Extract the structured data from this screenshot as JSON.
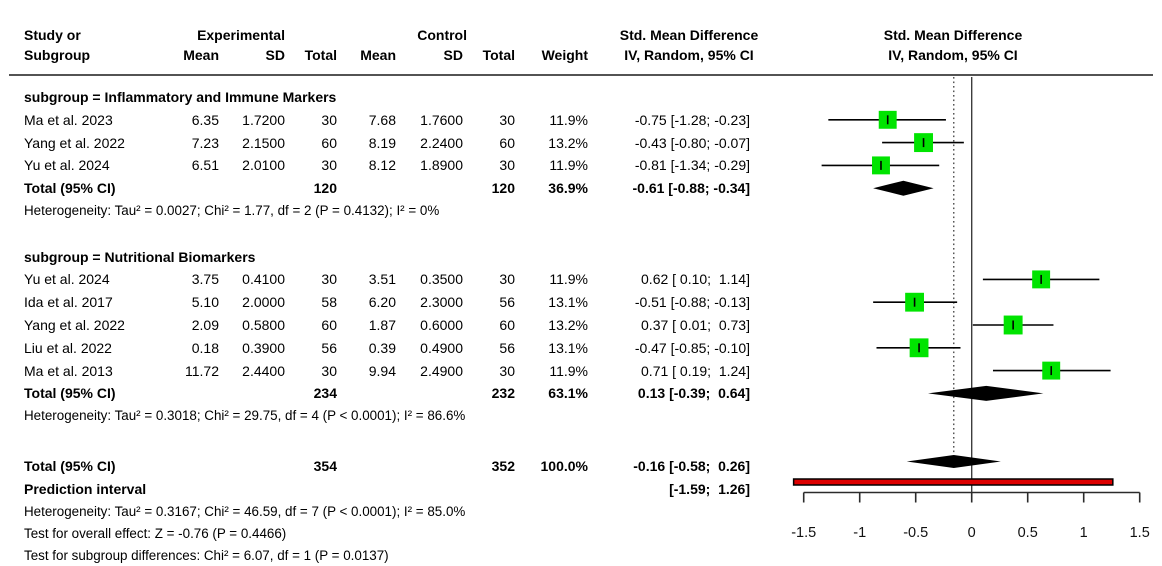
{
  "header": {
    "study_line1": "Study or",
    "study_line2": "Subgroup",
    "exp_group": "Experimental",
    "ctrl_group": "Control",
    "exp_mean": "Mean",
    "exp_sd": "SD",
    "exp_total": "Total",
    "ctrl_mean": "Mean",
    "ctrl_sd": "SD",
    "ctrl_total": "Total",
    "weight": "Weight",
    "smd_left_line1": "Std. Mean Difference",
    "smd_left_line2": "IV, Random, 95% CI",
    "smd_right_line1": "Std. Mean Difference",
    "smd_right_line2": "IV, Random, 95% CI"
  },
  "chart_data": {
    "type": "forest",
    "effect_measure": "Std. Mean Difference",
    "model": "IV, Random, 95% CI",
    "marker_color": "#00e400",
    "diamond_color": "#000000",
    "prediction_bar_color": "#dd0000",
    "x_axis": {
      "range": [
        -1.5,
        1.5
      ],
      "ticks": [
        -1.5,
        -1,
        -0.5,
        0,
        0.5,
        1,
        1.5
      ],
      "tick_labels": [
        "-1.5",
        "-1",
        "-0.5",
        "0",
        "0.5",
        "1",
        "1.5"
      ],
      "zero_line": 0,
      "overall_effect_line": -0.16
    },
    "subgroups": [
      {
        "label": "subgroup = Inflammatory and Immune Markers",
        "studies": [
          {
            "name": "Ma et al. 2023",
            "exp_mean": "6.35",
            "exp_sd": "1.7200",
            "exp_total": "30",
            "ctrl_mean": "7.68",
            "ctrl_sd": "1.7600",
            "ctrl_total": "30",
            "weight": "11.9%",
            "weight_val": 11.9,
            "ci_text": "-0.75 [-1.28; -0.23]",
            "est": -0.75,
            "lo": -1.28,
            "hi": -0.23
          },
          {
            "name": "Yang et al. 2022",
            "exp_mean": "7.23",
            "exp_sd": "2.1500",
            "exp_total": "60",
            "ctrl_mean": "8.19",
            "ctrl_sd": "2.2400",
            "ctrl_total": "60",
            "weight": "13.2%",
            "weight_val": 13.2,
            "ci_text": "-0.43 [-0.80; -0.07]",
            "est": -0.43,
            "lo": -0.8,
            "hi": -0.07
          },
          {
            "name": "Yu et al. 2024",
            "exp_mean": "6.51",
            "exp_sd": "2.0100",
            "exp_total": "30",
            "ctrl_mean": "8.12",
            "ctrl_sd": "1.8900",
            "ctrl_total": "30",
            "weight": "11.9%",
            "weight_val": 11.9,
            "ci_text": "-0.81 [-1.34; -0.29]",
            "est": -0.81,
            "lo": -1.34,
            "hi": -0.29
          }
        ],
        "total": {
          "label": "Total (95% CI)",
          "exp_total": "120",
          "ctrl_total": "120",
          "weight": "36.9%",
          "ci_text": "-0.61 [-0.88; -0.34]",
          "est": -0.61,
          "lo": -0.88,
          "hi": -0.34
        },
        "heterogeneity": "Heterogeneity: Tau² = 0.0027; Chi² = 1.77, df = 2 (P = 0.4132); I² = 0%"
      },
      {
        "label": "subgroup = Nutritional Biomarkers",
        "studies": [
          {
            "name": "Yu et al. 2024",
            "exp_mean": "3.75",
            "exp_sd": "0.4100",
            "exp_total": "30",
            "ctrl_mean": "3.51",
            "ctrl_sd": "0.3500",
            "ctrl_total": "30",
            "weight": "11.9%",
            "weight_val": 11.9,
            "ci_text": " 0.62 [ 0.10;  1.14]",
            "est": 0.62,
            "lo": 0.1,
            "hi": 1.14
          },
          {
            "name": "Ida et al. 2017",
            "exp_mean": "5.10",
            "exp_sd": "2.0000",
            "exp_total": "58",
            "ctrl_mean": "6.20",
            "ctrl_sd": "2.3000",
            "ctrl_total": "56",
            "weight": "13.1%",
            "weight_val": 13.1,
            "ci_text": "-0.51 [-0.88; -0.13]",
            "est": -0.51,
            "lo": -0.88,
            "hi": -0.13
          },
          {
            "name": "Yang et al. 2022",
            "exp_mean": "2.09",
            "exp_sd": "0.5800",
            "exp_total": "60",
            "ctrl_mean": "1.87",
            "exp_sd2": "",
            "ctrl_sd": "0.6000",
            "ctrl_total": "60",
            "weight": "13.2%",
            "weight_val": 13.2,
            "ci_text": " 0.37 [ 0.01;  0.73]",
            "est": 0.37,
            "lo": 0.01,
            "hi": 0.73
          },
          {
            "name": "Liu et al. 2022",
            "exp_mean": "0.18",
            "exp_sd": "0.3900",
            "exp_total": "56",
            "ctrl_mean": "0.39",
            "ctrl_sd": "0.4900",
            "ctrl_total": "56",
            "weight": "13.1%",
            "weight_val": 13.1,
            "ci_text": "-0.47 [-0.85; -0.10]",
            "est": -0.47,
            "lo": -0.85,
            "hi": -0.1
          },
          {
            "name": "Ma et al. 2013",
            "exp_mean": "11.72",
            "exp_sd": "2.4400",
            "exp_total": "30",
            "ctrl_mean": "9.94",
            "ctrl_sd": "2.4900",
            "ctrl_total": "30",
            "weight": "11.9%",
            "weight_val": 11.9,
            "ci_text": " 0.71 [ 0.19;  1.24]",
            "est": 0.71,
            "lo": 0.19,
            "hi": 1.24
          }
        ],
        "total": {
          "label": "Total (95% CI)",
          "exp_total": "234",
          "ctrl_total": "232",
          "weight": "63.1%",
          "ci_text": " 0.13 [-0.39;  0.64]",
          "est": 0.13,
          "lo": -0.39,
          "hi": 0.64
        },
        "heterogeneity": "Heterogeneity: Tau² = 0.3018; Chi² = 29.75, df = 4 (P < 0.0001); I² = 86.6%"
      }
    ],
    "overall": {
      "label": "Total (95% CI)",
      "exp_total": "354",
      "ctrl_total": "352",
      "weight": "100.0%",
      "ci_text": "-0.16 [-0.58;  0.26]",
      "est": -0.16,
      "lo": -0.58,
      "hi": 0.26
    },
    "prediction": {
      "label": "Prediction interval",
      "ci_text": "[-1.59;  1.26]",
      "lo": -1.59,
      "hi": 1.26
    },
    "footnotes": [
      "Heterogeneity: Tau² = 0.3167; Chi² = 46.59, df = 7 (P < 0.0001); I² = 85.0%",
      "Test for overall effect: Z = -0.76 (P = 0.4466)",
      "Test for subgroup differences: Chi² = 6.07, df = 1 (P = 0.0137)"
    ]
  }
}
